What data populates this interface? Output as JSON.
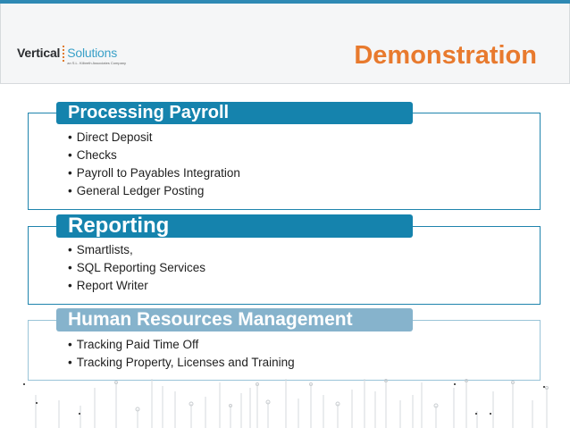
{
  "header": {
    "logo_left": "Vertical",
    "logo_right": "Solutions",
    "logo_tagline": "an S.L. Kilbreth Associates Company",
    "title": "Demonstration"
  },
  "sections": [
    {
      "heading": "Processing Payroll",
      "items": [
        "Direct Deposit",
        "Checks",
        "Payroll to Payables Integration",
        "General Ledger Posting"
      ]
    },
    {
      "heading": "Reporting",
      "items": [
        "Smartlists,",
        "SQL Reporting Services",
        "Report Writer"
      ]
    },
    {
      "heading": "Human Resources Management",
      "items": [
        "Tracking Paid Time Off",
        "Tracking Property, Licenses and Training"
      ]
    }
  ],
  "colors": {
    "accent_orange": "#e87a2e",
    "accent_blue": "#1583ad",
    "accent_blue_light": "#86b3cc"
  }
}
